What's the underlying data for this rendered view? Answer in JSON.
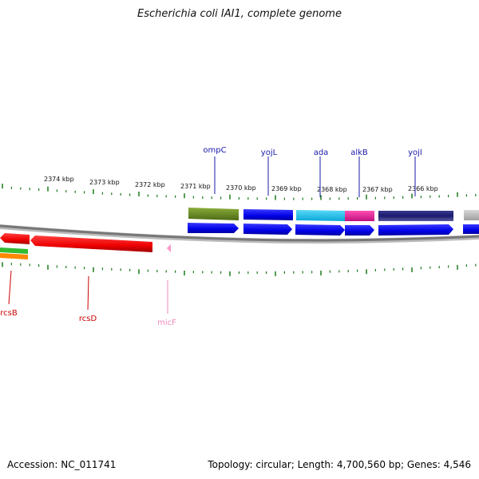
{
  "title": "Escherichia coli IAI1, complete genome",
  "footer": {
    "accession": "Accession: NC_011741",
    "summary": "Topology: circular; Length: 4,700,560 bp; Genes: 4,546"
  },
  "ticks": [
    {
      "label": "2374 kbp"
    },
    {
      "label": "2373 kbp"
    },
    {
      "label": "2372 kbp"
    },
    {
      "label": "2371 kbp"
    },
    {
      "label": "2370 kbp"
    },
    {
      "label": "2369 kbp"
    },
    {
      "label": "2368 kbp"
    },
    {
      "label": "2367 kbp"
    },
    {
      "label": "2366 kbp"
    }
  ],
  "genes_top": [
    {
      "label": "ompC",
      "color": "#1a1aaa"
    },
    {
      "label": "yojL",
      "color": "#1a1aaa"
    },
    {
      "label": "ada",
      "color": "#1a1aaa"
    },
    {
      "label": "alkB",
      "color": "#1a1aaa"
    },
    {
      "label": "yojI",
      "color": "#1a1aaa"
    }
  ],
  "genes_bottom": [
    {
      "label": "rcsB",
      "color": "#cc0000"
    },
    {
      "label": "rcsD",
      "color": "#cc0000"
    },
    {
      "label": "micF",
      "color": "#ee88bb"
    }
  ],
  "colors": {
    "ticks": "#1a7a1a",
    "backbone": "#888888",
    "forward_cds": "#0000ee",
    "reverse_cds": "#ee0000",
    "olive": "#6b8e23",
    "cyan": "#1ec8f0",
    "magenta": "#e0219a",
    "navy": "#1a1a6e",
    "grey": "#bbbbbb",
    "green": "#33bb33",
    "orange": "#ff8800",
    "pink": "#ff99cc"
  }
}
